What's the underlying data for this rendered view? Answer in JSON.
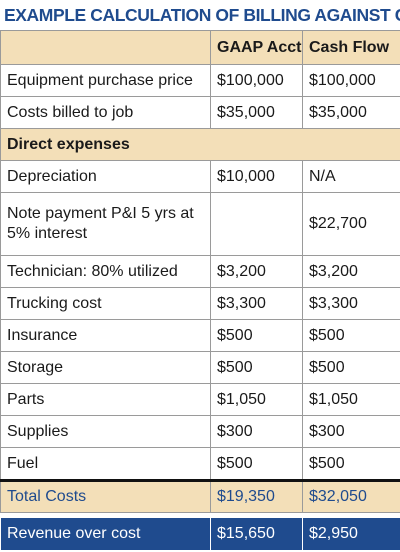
{
  "title": "EXAMPLE CALCULATION OF BILLING AGAINST COSTS",
  "headers": {
    "label": "",
    "col1": "GAAP Acct",
    "col2": "Cash Flow"
  },
  "top_rows": [
    {
      "label": "Equipment purchase price",
      "gaap": "$100,000",
      "cash": "$100,000"
    },
    {
      "label": "Costs billed to job",
      "gaap": "$35,000",
      "cash": "$35,000"
    }
  ],
  "section_title": "Direct expenses",
  "expense_rows": [
    {
      "label": "Depreciation",
      "gaap": "$10,000",
      "cash": "N/A"
    },
    {
      "label": "Note payment P&I 5 yrs at 5% interest",
      "gaap": "",
      "cash": "$22,700"
    },
    {
      "label": "Technician: 80% utilized",
      "gaap": "$3,200",
      "cash": "$3,200"
    },
    {
      "label": "Trucking cost",
      "gaap": "$3,300",
      "cash": "$3,300"
    },
    {
      "label": "Insurance",
      "gaap": "$500",
      "cash": "$500"
    },
    {
      "label": "Storage",
      "gaap": "$500",
      "cash": "$500"
    },
    {
      "label": "Parts",
      "gaap": "$1,050",
      "cash": "$1,050"
    },
    {
      "label": "Supplies",
      "gaap": "$300",
      "cash": "$300"
    },
    {
      "label": "Fuel",
      "gaap": "$500",
      "cash": "$500"
    }
  ],
  "total": {
    "label": "Total Costs",
    "gaap": "$19,350",
    "cash": "$32,050"
  },
  "revenue": {
    "label": "Revenue over cost",
    "gaap": "$15,650",
    "cash": "$2,950"
  },
  "colors": {
    "title_blue": "#1f4b8e",
    "header_tan": "#f3dfb8",
    "revenue_bg": "#1f4b8e"
  }
}
